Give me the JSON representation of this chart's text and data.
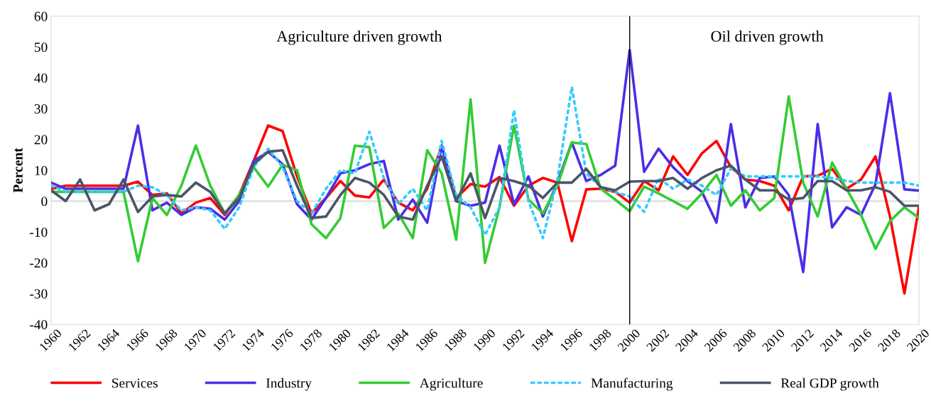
{
  "chart_data": {
    "type": "line",
    "ylabel": "Percent",
    "x": [
      1960,
      1961,
      1962,
      1963,
      1964,
      1965,
      1966,
      1967,
      1968,
      1969,
      1970,
      1971,
      1972,
      1973,
      1974,
      1975,
      1976,
      1977,
      1978,
      1979,
      1980,
      1981,
      1982,
      1983,
      1984,
      1985,
      1986,
      1987,
      1988,
      1989,
      1990,
      1991,
      1992,
      1993,
      1994,
      1995,
      1996,
      1997,
      1998,
      1999,
      2000,
      2001,
      2002,
      2003,
      2004,
      2005,
      2006,
      2007,
      2008,
      2009,
      2010,
      2011,
      2012,
      2013,
      2014,
      2015,
      2016,
      2017,
      2018,
      2019,
      2020
    ],
    "series": [
      {
        "name": "Services",
        "color": "#ff0000",
        "line_style": "solid",
        "values": [
          4,
          5,
          5,
          5,
          5,
          5,
          6.3,
          2,
          2.5,
          -4,
          -0.5,
          1,
          -4.5,
          2,
          13,
          24.5,
          22.7,
          8,
          -4,
          1,
          6.5,
          1.8,
          1.2,
          7,
          -0.5,
          -3,
          4,
          18,
          1,
          5.5,
          4.7,
          7.8,
          -1.5,
          5,
          7.5,
          6,
          -13,
          3.8,
          4,
          3,
          -0.5,
          6.5,
          3.5,
          14.5,
          8.5,
          15.5,
          19.5,
          11,
          7,
          6.5,
          5,
          -3,
          8,
          8.2,
          10.5,
          4,
          7,
          14.5,
          -5,
          -30,
          -2
        ]
      },
      {
        "name": "Industry",
        "color": "#4a2ee8",
        "line_style": "solid",
        "values": [
          6,
          4,
          4,
          4,
          4,
          4,
          24.5,
          -3,
          -0.5,
          -4.5,
          -2,
          -2.5,
          -6,
          0,
          13,
          16,
          12,
          -1,
          -6,
          1,
          9,
          10,
          12,
          13,
          -6,
          0.5,
          -7,
          18,
          0,
          -1.5,
          -0.5,
          18,
          -1,
          8,
          -5,
          6,
          19,
          6.5,
          8.5,
          11.5,
          49,
          9.5,
          17,
          11,
          6.5,
          3,
          -7,
          25,
          -2,
          7.5,
          8,
          2,
          -23,
          25,
          -8.5,
          -2,
          -4.5,
          5.5,
          35,
          3.8,
          3.4
        ]
      },
      {
        "name": "Agriculture",
        "color": "#33cc33",
        "line_style": "solid",
        "values": [
          3,
          3,
          3,
          3,
          3,
          3,
          -19.5,
          1,
          -4.5,
          5,
          18,
          5,
          -4,
          2,
          11,
          4.7,
          11.8,
          10,
          -7.5,
          -12,
          -5.5,
          18,
          17.5,
          -8.7,
          -4,
          -12,
          16.5,
          9,
          -12.5,
          33,
          -20,
          -2,
          24.5,
          0.5,
          -4,
          5,
          19,
          18.5,
          4,
          0.5,
          -3.3,
          4.7,
          2.5,
          0,
          -2.5,
          2.5,
          8.5,
          -1.5,
          3.5,
          -3,
          1,
          34,
          6,
          -5,
          12.5,
          4,
          -4.5,
          -15.5,
          -6.5,
          -2,
          -5.5
        ]
      },
      {
        "name": "Manufacturing",
        "color": "#33ccff",
        "line_style": "dotted",
        "values": [
          5,
          3,
          3,
          3,
          3,
          3,
          5,
          4.5,
          2,
          -3,
          -2,
          -3,
          -9,
          -2,
          11,
          17,
          11,
          0,
          -4,
          4,
          10,
          9,
          22.5,
          7.5,
          -1,
          4,
          -3,
          19.5,
          2,
          -2,
          -11,
          -2,
          29.5,
          0,
          -12,
          7,
          37,
          9,
          4.5,
          3,
          1.5,
          -3.5,
          7.5,
          4,
          7,
          5,
          2,
          10.5,
          8,
          8,
          8,
          8,
          8,
          8,
          7.5,
          6.5,
          6,
          6,
          6,
          6,
          5
        ]
      },
      {
        "name": "Real GDP growth",
        "color": "#4a5568",
        "line_style": "solid",
        "values": [
          3.5,
          0,
          7,
          -3,
          -1,
          7,
          -3.5,
          1.5,
          2,
          1.5,
          6,
          3,
          -4,
          1,
          12,
          16,
          16.5,
          5,
          -5.5,
          -5,
          2,
          7.5,
          6,
          2,
          -5,
          -6,
          5,
          14.5,
          0,
          9,
          -5.5,
          7.5,
          6.5,
          5,
          1,
          6,
          6,
          10.5,
          4.5,
          3.5,
          6.3,
          6.5,
          6.5,
          7.5,
          4,
          7.5,
          10,
          11.5,
          7,
          3.5,
          3.5,
          0.5,
          1,
          6.5,
          6.5,
          3.5,
          3.5,
          4.5,
          3,
          -1.5,
          -1.5
        ]
      }
    ],
    "xlim": [
      1960,
      2020
    ],
    "xticks": [
      1960,
      1962,
      1964,
      1966,
      1968,
      1970,
      1972,
      1974,
      1976,
      1978,
      1980,
      1982,
      1984,
      1986,
      1988,
      1990,
      1992,
      1994,
      1996,
      1998,
      2000,
      2002,
      2004,
      2006,
      2008,
      2010,
      2012,
      2014,
      2016,
      2018,
      2020
    ],
    "ylim": [
      -40,
      60
    ],
    "yticks": [
      -40,
      -30,
      -20,
      -10,
      0,
      10,
      20,
      30,
      40,
      50,
      60
    ],
    "ref_lines": [
      {
        "axis": "x",
        "value": 2000,
        "label": null,
        "color": "#000000"
      },
      {
        "axis": "y",
        "value": 0,
        "label": null,
        "color": "#d9d9d9"
      }
    ],
    "annotations": [
      "Agriculture driven growth",
      "Oil driven growth"
    ],
    "grid": false,
    "legend": "bottom",
    "marker": "none"
  }
}
